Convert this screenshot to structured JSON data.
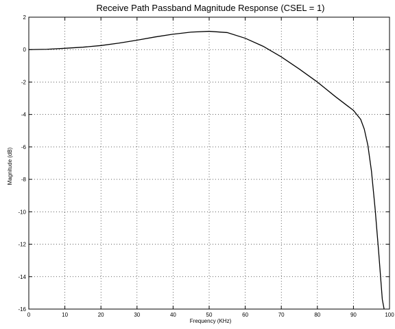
{
  "chart_data": {
    "type": "line",
    "title": "Receive Path Passband Magnitude Response (CSEL = 1)",
    "xlabel": "Frequency (KHz)",
    "ylabel": "Magnitude (dB)",
    "xlim": [
      0,
      100
    ],
    "ylim": [
      -16,
      2
    ],
    "xticks": [
      0,
      10,
      20,
      30,
      40,
      50,
      60,
      70,
      80,
      90,
      100
    ],
    "yticks": [
      2,
      0,
      -2,
      -4,
      -6,
      -8,
      -10,
      -12,
      -14,
      -16
    ],
    "grid": true,
    "grid_style": "dotted",
    "line_color": "#000000",
    "series": [
      {
        "x": [
          0,
          5,
          10,
          15,
          20,
          25,
          30,
          35,
          40,
          45,
          50,
          55,
          60,
          65,
          70,
          75,
          80,
          85,
          90,
          92,
          93,
          94,
          95,
          96,
          97,
          98,
          98.5
        ],
        "y": [
          0,
          0.02,
          0.08,
          0.15,
          0.25,
          0.4,
          0.58,
          0.78,
          0.95,
          1.08,
          1.13,
          1.05,
          0.7,
          0.2,
          -0.45,
          -1.2,
          -2.0,
          -2.9,
          -3.75,
          -4.3,
          -4.9,
          -5.9,
          -7.5,
          -9.8,
          -12.5,
          -15.4,
          -16
        ]
      }
    ]
  }
}
